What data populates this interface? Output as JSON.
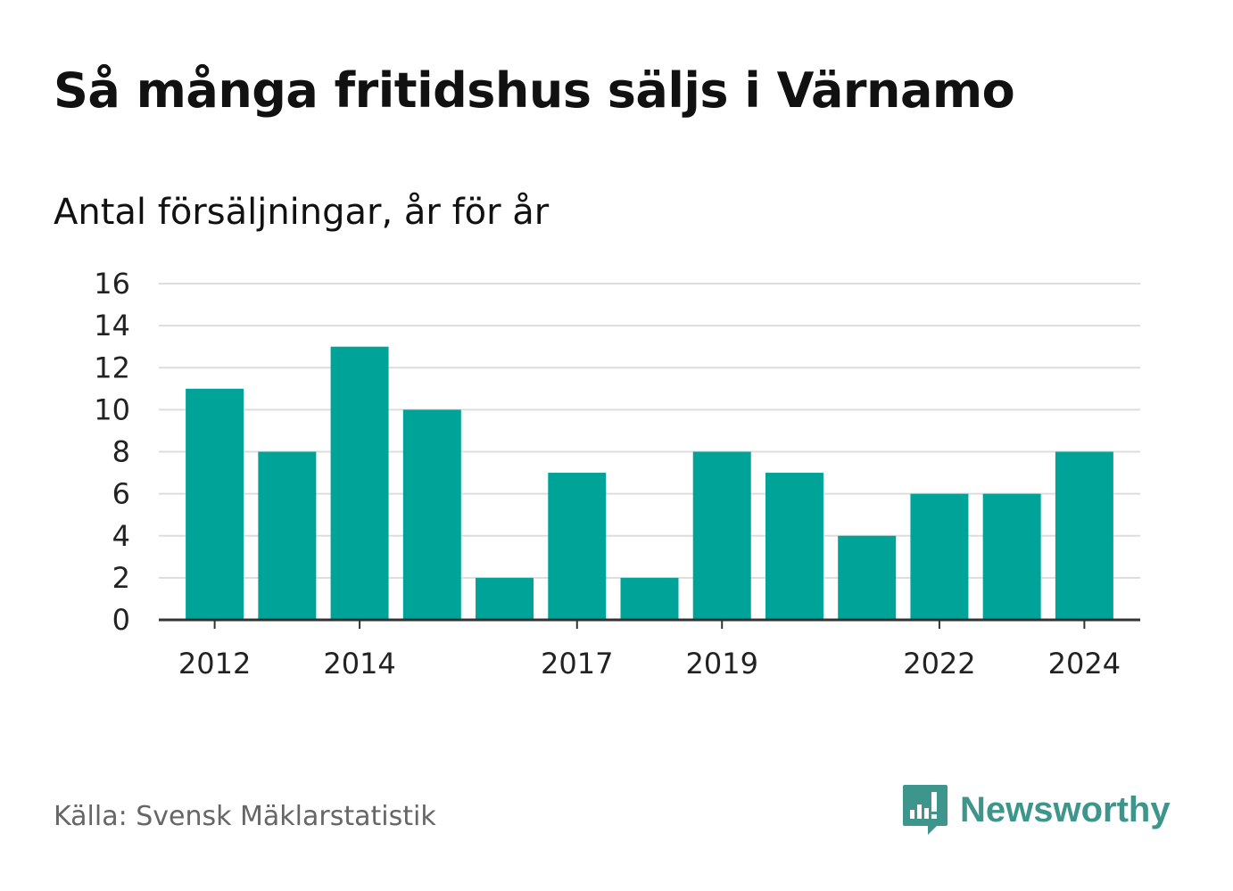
{
  "title": "Så många fritidshus säljs i Värnamo",
  "subtitle": "Antal försäljningar, år för år",
  "source": "Källa: Svensk Mäklarstatistik",
  "brand": {
    "name": "Newsworthy",
    "icon": "newsworthy-logo-icon",
    "color": "#3e958b"
  },
  "colors": {
    "bar": "#00a398",
    "grid": "#dddddd",
    "axis": "#333333"
  },
  "chart_data": {
    "type": "bar",
    "categories": [
      "2012",
      "2013",
      "2014",
      "2015",
      "2016",
      "2017",
      "2018",
      "2019",
      "2020",
      "2021",
      "2022",
      "2023",
      "2024"
    ],
    "values": [
      11,
      8,
      13,
      10,
      2,
      7,
      2,
      8,
      7,
      4,
      6,
      6,
      8
    ],
    "x_tick_labels": [
      "2012",
      "2014",
      "2017",
      "2019",
      "2022",
      "2024"
    ],
    "y_ticks": [
      0,
      2,
      4,
      6,
      8,
      10,
      12,
      14,
      16
    ],
    "ylim": [
      0,
      16
    ],
    "xlabel": "",
    "ylabel": "",
    "grid": true,
    "legend": "none"
  }
}
